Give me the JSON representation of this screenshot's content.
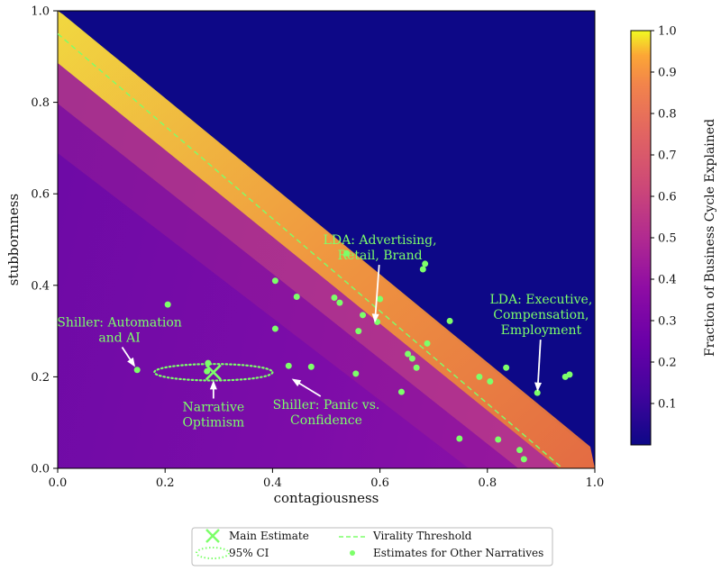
{
  "chart_data": {
    "type": "heatmap",
    "xlabel": "contagiousness",
    "ylabel": "stubbornness",
    "xlim": [
      0,
      1
    ],
    "ylim": [
      0,
      1
    ],
    "xticks": [
      "0.0",
      "0.2",
      "0.4",
      "0.6",
      "0.8",
      "1.0"
    ],
    "yticks": [
      "0.0",
      "0.2",
      "0.4",
      "0.6",
      "0.8",
      "1.0"
    ],
    "colorbar": {
      "label": "Fraction of Business Cycle Explained",
      "range": [
        0,
        1
      ],
      "ticks": [
        "0.1",
        "0.2",
        "0.3",
        "0.4",
        "0.5",
        "0.6",
        "0.7",
        "0.8",
        "0.9",
        "1.0"
      ],
      "colormap": "plasma"
    },
    "virality_threshold": {
      "x": [
        0.0,
        0.94
      ],
      "y": [
        0.95,
        0.0
      ],
      "color": "#7dff6a"
    },
    "main_estimate": {
      "x": 0.29,
      "y": 0.21
    },
    "ci_ellipse": {
      "cx": 0.29,
      "cy": 0.21,
      "rx": 0.11,
      "ry": 0.018
    },
    "other_narratives": [
      {
        "x": 0.148,
        "y": 0.215
      },
      {
        "x": 0.205,
        "y": 0.358
      },
      {
        "x": 0.28,
        "y": 0.23
      },
      {
        "x": 0.278,
        "y": 0.212
      },
      {
        "x": 0.405,
        "y": 0.41
      },
      {
        "x": 0.445,
        "y": 0.375
      },
      {
        "x": 0.405,
        "y": 0.305
      },
      {
        "x": 0.43,
        "y": 0.224
      },
      {
        "x": 0.472,
        "y": 0.222
      },
      {
        "x": 0.515,
        "y": 0.373
      },
      {
        "x": 0.525,
        "y": 0.362
      },
      {
        "x": 0.538,
        "y": 0.47
      },
      {
        "x": 0.555,
        "y": 0.207
      },
      {
        "x": 0.56,
        "y": 0.3
      },
      {
        "x": 0.568,
        "y": 0.335
      },
      {
        "x": 0.595,
        "y": 0.32
      },
      {
        "x": 0.6,
        "y": 0.37
      },
      {
        "x": 0.64,
        "y": 0.167
      },
      {
        "x": 0.652,
        "y": 0.25
      },
      {
        "x": 0.66,
        "y": 0.24
      },
      {
        "x": 0.668,
        "y": 0.22
      },
      {
        "x": 0.68,
        "y": 0.435
      },
      {
        "x": 0.684,
        "y": 0.447
      },
      {
        "x": 0.688,
        "y": 0.273
      },
      {
        "x": 0.73,
        "y": 0.322
      },
      {
        "x": 0.748,
        "y": 0.065
      },
      {
        "x": 0.785,
        "y": 0.2
      },
      {
        "x": 0.805,
        "y": 0.19
      },
      {
        "x": 0.82,
        "y": 0.063
      },
      {
        "x": 0.835,
        "y": 0.22
      },
      {
        "x": 0.86,
        "y": 0.04
      },
      {
        "x": 0.868,
        "y": 0.02
      },
      {
        "x": 0.893,
        "y": 0.165
      },
      {
        "x": 0.945,
        "y": 0.2
      },
      {
        "x": 0.953,
        "y": 0.205
      }
    ],
    "annotations": [
      {
        "lines": [
          "LDA: Advertising,",
          "Retail, Brand"
        ],
        "text_x": 0.6,
        "text_y": 0.49,
        "point_x": 0.59,
        "point_y": 0.31
      },
      {
        "lines": [
          "LDA: Executive,",
          "Compensation,",
          "Employment"
        ],
        "text_x": 0.9,
        "text_y": 0.36,
        "point_x": 0.893,
        "point_y": 0.16
      },
      {
        "lines": [
          "Shiller: Automation",
          "and AI"
        ],
        "text_x": 0.115,
        "text_y": 0.31,
        "point_x": 0.148,
        "point_y": 0.215
      },
      {
        "lines": [
          "Narrative",
          "Optimism"
        ],
        "text_x": 0.29,
        "text_y": 0.125,
        "point_x": 0.29,
        "point_y": 0.2
      },
      {
        "lines": [
          "Shiller: Panic vs.",
          "Confidence"
        ],
        "text_x": 0.5,
        "text_y": 0.13,
        "point_x": 0.43,
        "point_y": 0.2
      }
    ],
    "legend": {
      "position": "bottom-center",
      "entries": [
        "Main Estimate",
        "95% CI",
        "Virality Threshold",
        "Estimates for Other Narratives"
      ]
    },
    "colors": {
      "accent": "#7dff6a",
      "background_dark": "#0d0887",
      "plasma_mid": "#6a00a8",
      "plasma_high": "#f0f921"
    }
  }
}
